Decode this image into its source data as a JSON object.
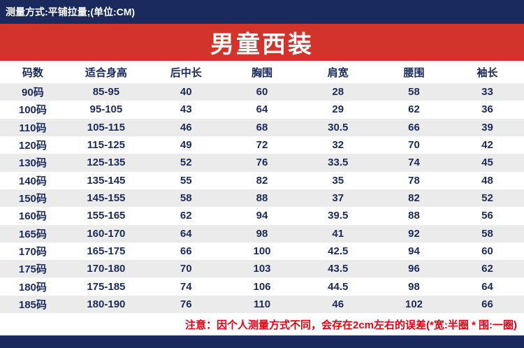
{
  "top_bar": {
    "text": "测量方式:平铺拉量;(单位:CM)"
  },
  "banner": {
    "title": "男童西装"
  },
  "chart_data": {
    "type": "table",
    "title": "男童西装",
    "unit": "CM",
    "columns": [
      "码数",
      "适合身高",
      "后中长",
      "胸围",
      "肩宽",
      "腰围",
      "袖长"
    ],
    "rows": [
      [
        "90码",
        "85-95",
        "40",
        "60",
        "28",
        "58",
        "33"
      ],
      [
        "100码",
        "95-105",
        "43",
        "64",
        "29",
        "62",
        "36"
      ],
      [
        "110码",
        "105-115",
        "46",
        "68",
        "30.5",
        "66",
        "39"
      ],
      [
        "120码",
        "115-125",
        "49",
        "72",
        "32",
        "70",
        "42"
      ],
      [
        "130码",
        "125-135",
        "52",
        "76",
        "33.5",
        "74",
        "45"
      ],
      [
        "140码",
        "135-145",
        "55",
        "82",
        "35",
        "78",
        "48"
      ],
      [
        "150码",
        "145-155",
        "58",
        "88",
        "37",
        "82",
        "52"
      ],
      [
        "160码",
        "155-165",
        "62",
        "94",
        "39.5",
        "88",
        "56"
      ],
      [
        "165码",
        "160-170",
        "64",
        "98",
        "41",
        "92",
        "58"
      ],
      [
        "170码",
        "165-175",
        "66",
        "100",
        "42.5",
        "94",
        "60"
      ],
      [
        "175码",
        "170-180",
        "70",
        "103",
        "43.5",
        "96",
        "62"
      ],
      [
        "180码",
        "175-185",
        "74",
        "106",
        "44.5",
        "98",
        "64"
      ],
      [
        "185码",
        "180-190",
        "76",
        "110",
        "46",
        "102",
        "66"
      ]
    ]
  },
  "note": {
    "text": "注意：因个人测量方式不同，会存在2cm左右的误差(*宽:半圈 * 围:一圈)"
  },
  "colors": {
    "navy": "#1a2a5e",
    "red": "#d2342b",
    "row_alt": "#ebebeb",
    "note_red": "#e60012"
  }
}
